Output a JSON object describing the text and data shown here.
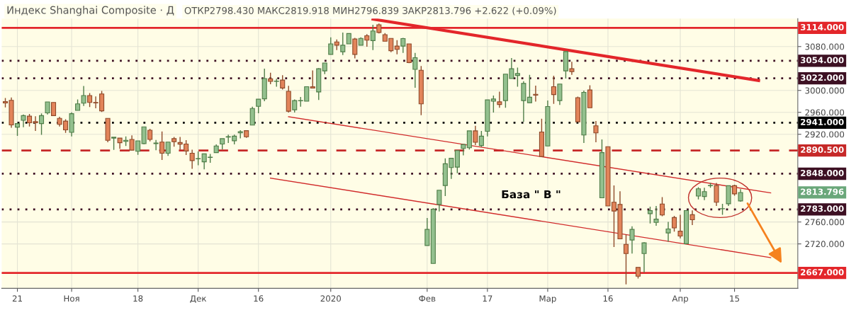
{
  "chart_data": {
    "type": "candlestick",
    "title": "Индекс Shanghai Composite · Д",
    "subtitle": "ОТКР2798.430 МАКС2819.918 МИН2796.839 ЗАКР2813.796 +2.622 (+0.09%)",
    "categories": [
      null,
      null,
      "21",
      null,
      null,
      null,
      null,
      null,
      null,
      null,
      null,
      "Ноя",
      null,
      null,
      null,
      null,
      null,
      null,
      null,
      null,
      null,
      null,
      "18",
      null,
      null,
      null,
      null,
      null,
      null,
      null,
      null,
      null,
      "Дек",
      null,
      null,
      null,
      null,
      null,
      null,
      null,
      null,
      null,
      "16",
      null,
      null,
      null,
      null,
      null,
      null,
      null,
      null,
      null,
      null,
      null,
      "2020",
      null,
      null,
      null,
      null,
      null,
      null,
      null,
      null,
      null,
      null,
      null,
      null,
      null,
      null,
      null,
      "Фев",
      null,
      null,
      null,
      null,
      null,
      null,
      null,
      null,
      null,
      "17",
      null,
      null,
      null,
      null,
      null,
      null,
      null,
      null,
      null,
      "Мар",
      null,
      null,
      null,
      null,
      null,
      null,
      null,
      null,
      null,
      "16",
      null,
      null,
      null,
      null,
      null,
      null,
      null,
      null,
      null,
      null,
      null,
      "Апр",
      null,
      null,
      null,
      null,
      null,
      null,
      null,
      null,
      "15",
      null,
      null,
      null,
      null,
      null,
      null,
      null,
      null,
      null,
      null
    ],
    "ohlc": [
      [
        2979.5,
        2986,
        2969,
        2977
      ],
      [
        2982,
        2987,
        2932,
        2937
      ],
      [
        2933,
        2939.5,
        2917,
        2939.5
      ],
      [
        2945.5,
        2956,
        2933,
        2954
      ],
      [
        2953,
        2957,
        2934,
        2941
      ],
      [
        2943,
        2953,
        2926,
        2941
      ],
      [
        2939.5,
        2958,
        2919,
        2954
      ],
      [
        2959,
        2979,
        2956,
        2979
      ],
      [
        2978,
        2978,
        2953.5,
        2954
      ],
      [
        2949,
        2952,
        2934,
        2938
      ],
      [
        2944,
        2947.5,
        2922.5,
        2928
      ],
      [
        2923.5,
        2960,
        2916,
        2957.5
      ],
      [
        2963.5,
        2983.5,
        2963.5,
        2975.5
      ],
      [
        2976.7,
        3008,
        2971.5,
        2990.7
      ],
      [
        2990.7,
        2995,
        2969.5,
        2978
      ],
      [
        2978,
        2989,
        2967.5,
        2977
      ],
      [
        2993.5,
        2999,
        2960.7,
        2962.7
      ],
      [
        2949,
        2949,
        2905.4,
        2909
      ],
      [
        2913,
        2914.6,
        2891.4,
        2914.6
      ],
      [
        2913,
        2913,
        2893.4,
        2904.6
      ],
      [
        2907,
        2916,
        2898.6,
        2909
      ],
      [
        2910.6,
        2918,
        2891,
        2891
      ],
      [
        2889,
        2908,
        2882.6,
        2908
      ],
      [
        2903,
        2933.5,
        2902,
        2933.5
      ],
      [
        2927.4,
        2930,
        2907,
        2910.6
      ],
      [
        2903,
        2909.5,
        2891,
        2904
      ],
      [
        2905.8,
        2925,
        2873,
        2885.4
      ],
      [
        2885.4,
        2905.8,
        2880.6,
        2905.8
      ],
      [
        2912,
        2915,
        2897.4,
        2906.6
      ],
      [
        2905,
        2915,
        2892,
        2902
      ],
      [
        2902.2,
        2909.4,
        2882.2,
        2889.4
      ],
      [
        2885.4,
        2891.8,
        2857,
        2872
      ],
      [
        2875,
        2888.6,
        2863.4,
        2875.8
      ],
      [
        2869.8,
        2884.2,
        2856,
        2884.2
      ],
      [
        2877.6,
        2884.2,
        2868,
        2878.2
      ],
      [
        2886.6,
        2901.4,
        2886.6,
        2898.6
      ],
      [
        2902.2,
        2912,
        2892.6,
        2912
      ],
      [
        2915,
        2919.4,
        2904.2,
        2915.6
      ],
      [
        2908.2,
        2919.4,
        2901.4,
        2916.6
      ],
      [
        2922.6,
        2927.4,
        2912.6,
        2924.6
      ],
      [
        2926.6,
        2927.4,
        2913.4,
        2915.4
      ],
      [
        2936.7,
        2970.3,
        2936.7,
        2967
      ],
      [
        2971,
        2984,
        2958.3,
        2984
      ],
      [
        2984.7,
        3039.6,
        2980.3,
        3021.6
      ],
      [
        3021.2,
        3032.4,
        3011.2,
        3016.4
      ],
      [
        3016.5,
        3021.2,
        3006.8,
        3017
      ],
      [
        3018.8,
        3027.6,
        3001.6,
        3004.4
      ],
      [
        2998.4,
        3008.4,
        2959.5,
        2962
      ],
      [
        2964.7,
        2983.5,
        2959.5,
        2981.5
      ],
      [
        2981,
        2988,
        2970.3,
        2981.5
      ],
      [
        2980.3,
        3006.8,
        2980.3,
        3006.8
      ],
      [
        3006.8,
        3036.4,
        3004.4,
        3004.4
      ],
      [
        2997.2,
        3040.8,
        2982.7,
        3039.6
      ],
      [
        3035.6,
        3050,
        3029.6,
        3050
      ],
      [
        3065.7,
        3096.9,
        3065.7,
        3084.9
      ],
      [
        3088.5,
        3092.9,
        3073.7,
        3082.5
      ],
      [
        3070.5,
        3105.7,
        3064.5,
        3082.5
      ],
      [
        3084.9,
        3103.7,
        3084.9,
        3103.7
      ],
      [
        3093.7,
        3095.7,
        3058.5,
        3065.7
      ],
      [
        3082.5,
        3096.9,
        3082.5,
        3094.9
      ],
      [
        3099.7,
        3102.5,
        3079.7,
        3091.7
      ],
      [
        3090.9,
        3119.8,
        3073.7,
        3108.5
      ],
      [
        3119.8,
        3122,
        3104,
        3105.7
      ],
      [
        3101.7,
        3104.5,
        3089.7,
        3089.7
      ],
      [
        3094.9,
        3094.9,
        3069.7,
        3072.5
      ],
      [
        3080.9,
        3091.7,
        3065.7,
        3074.9
      ],
      [
        3080.9,
        3095.7,
        3068.5,
        3094.5
      ],
      [
        3084.9,
        3084.9,
        3049.6,
        3050.8
      ],
      [
        3038.4,
        3068.5,
        3004.8,
        3059.7
      ],
      [
        3036.8,
        3044.4,
        2954.7,
        2975.5
      ],
      [
        2717.1,
        2767.2,
        2717.1,
        2746.4
      ],
      [
        2684.3,
        2785.2,
        2684.3,
        2783.2
      ],
      [
        2792,
        2818,
        2779.2,
        2818
      ],
      [
        2826.5,
        2876.2,
        2807.3,
        2866.2
      ],
      [
        2859.3,
        2876.2,
        2838.5,
        2876.2
      ],
      [
        2860.1,
        2890.2,
        2848.9,
        2890.2
      ],
      [
        2894.2,
        2901.4,
        2881.4,
        2901.4
      ],
      [
        2895.4,
        2926.2,
        2892.2,
        2926.2
      ],
      [
        2926.2,
        2935.5,
        2900.2,
        2905.4
      ],
      [
        2899.4,
        2926.2,
        2896.6,
        2916.6
      ],
      [
        2925.4,
        2982.7,
        2916.2,
        2982.7
      ],
      [
        2980.3,
        2990.7,
        2959.5,
        2984.3
      ],
      [
        2979.1,
        2997.6,
        2968.3,
        2974.3
      ],
      [
        2981.5,
        3029.6,
        2968.3,
        3029.6
      ],
      [
        3021.6,
        3058.9,
        3021.6,
        3039.6
      ],
      [
        3027.2,
        3041.6,
        3006.8,
        3030.8
      ],
      [
        2981.5,
        3016.8,
        2942.7,
        3012.8
      ],
      [
        2977.5,
        3028.4,
        2977.5,
        2987.5
      ],
      [
        2992.8,
        3008.8,
        2979.5,
        2991.2
      ],
      [
        2924.2,
        2948.3,
        2879.4,
        2879.4
      ],
      [
        2898.6,
        2981.5,
        2898.6,
        2970.7
      ],
      [
        3006.8,
        3026.8,
        2975.5,
        2992.4
      ],
      [
        2981.5,
        3011.6,
        2973.5,
        3011.6
      ],
      [
        3035.6,
        3070.9,
        3021.6,
        3070.9
      ],
      [
        3039.6,
        3052.4,
        3028.4,
        3034.4
      ],
      [
        2986.7,
        2988.7,
        2942.7,
        2942.7
      ],
      [
        2918.6,
        2999.6,
        2904.2,
        2996.4
      ],
      [
        3000.8,
        3009.2,
        2968.3,
        2968.3
      ],
      [
        2935.5,
        2944.3,
        2905.4,
        2922.6
      ],
      [
        2804,
        2910.6,
        2804,
        2886.6
      ],
      [
        2897.4,
        2897.4,
        2789.2,
        2789.2
      ],
      [
        2796,
        2826.5,
        2714.3,
        2780
      ],
      [
        2792,
        2816,
        2729.1,
        2729.1
      ],
      [
        2719.1,
        2737.1,
        2646.2,
        2702.3
      ],
      [
        2727.1,
        2752,
        2702.3,
        2746.4
      ],
      [
        2677.1,
        2677.1,
        2657,
        2661
      ],
      [
        2702.3,
        2723.1,
        2667.8,
        2721.9
      ],
      [
        2775.2,
        2788,
        2757.2,
        2780.8
      ],
      [
        2759.2,
        2789.2,
        2753.2,
        2765.2
      ],
      [
        2792.8,
        2805.2,
        2770.4,
        2772.8
      ],
      [
        2740,
        2760,
        2723.9,
        2747.2
      ],
      [
        2768,
        2771.2,
        2742.4,
        2749.2
      ],
      [
        2743.2,
        2773.2,
        2730.3,
        2734.3
      ],
      [
        2720.3,
        2780.8,
        2720.3,
        2780.8
      ],
      [
        2773.2,
        2781.2,
        2754.4,
        2764
      ],
      [
        2807.3,
        2823.3,
        2801.2,
        2820.5
      ],
      [
        2806.5,
        2822.5,
        2800,
        2815.3
      ],
      [
        2826,
        2831.3,
        2822.5,
        2826.5
      ],
      [
        2826.5,
        2831.3,
        2789.2,
        2796
      ],
      [
        2784,
        2793.2,
        2773.2,
        2784.4
      ],
      [
        2793.2,
        2826.1,
        2789.2,
        2826.1
      ],
      [
        2826.1,
        2828.1,
        2808,
        2811.3
      ],
      [
        2798.43,
        2819.918,
        2796.839,
        2813.796
      ],
      null,
      null,
      null,
      null,
      null,
      null,
      null,
      null,
      null
    ],
    "series": [
      {
        "type": "line",
        "color": "#e3262a",
        "values": [
          null,
          null,
          null,
          null,
          null,
          null,
          null,
          null,
          null,
          null,
          null,
          null,
          null,
          null,
          null,
          null,
          null,
          null,
          null,
          null,
          null,
          null,
          null,
          null,
          null,
          null,
          null,
          null,
          null,
          null,
          null,
          null,
          null,
          null,
          null,
          null,
          null,
          null,
          null,
          null,
          null,
          null,
          null,
          null,
          null,
          null,
          null,
          null,
          null,
          null,
          null,
          null,
          null,
          null,
          null,
          null,
          null,
          null,
          null,
          null,
          null,
          3130,
          null,
          null,
          null,
          null,
          null,
          null,
          null,
          null,
          null,
          null,
          null,
          null,
          null,
          null,
          null,
          null,
          null,
          null,
          null,
          null,
          null,
          null,
          null,
          null,
          null,
          null,
          null,
          null,
          null,
          null,
          null,
          null,
          null,
          null,
          null,
          null,
          null,
          null,
          null,
          null,
          null,
          null,
          null,
          null,
          null,
          null,
          null,
          null,
          null,
          null,
          null,
          null,
          null,
          null,
          null,
          null,
          null,
          null,
          null,
          null,
          null,
          null,
          null,
          3018,
          null,
          null,
          null,
          null,
          null,
          null
        ]
      },
      {
        "type": "line",
        "color": "#d12b2b",
        "values": [
          null,
          null,
          null,
          null,
          null,
          null,
          null,
          null,
          null,
          null,
          null,
          null,
          null,
          null,
          null,
          null,
          null,
          null,
          null,
          null,
          null,
          null,
          null,
          null,
          null,
          null,
          null,
          null,
          null,
          null,
          null,
          null,
          null,
          null,
          null,
          null,
          null,
          null,
          null,
          null,
          null,
          null,
          null,
          null,
          null,
          null,
          null,
          2952,
          null,
          null,
          null,
          null,
          null,
          null,
          null,
          null,
          null,
          null,
          null,
          null,
          null,
          null,
          null,
          null,
          null,
          null,
          null,
          null,
          null,
          null,
          null,
          null,
          null,
          null,
          null,
          null,
          null,
          null,
          null,
          null,
          null,
          null,
          null,
          null,
          null,
          null,
          null,
          null,
          null,
          null,
          null,
          null,
          null,
          null,
          null,
          null,
          null,
          null,
          null,
          null,
          null,
          null,
          null,
          null,
          null,
          null,
          null,
          null,
          null,
          null,
          null,
          null,
          null,
          null,
          null,
          null,
          null,
          null,
          null,
          null,
          null,
          null,
          null,
          null,
          null,
          null,
          null,
          2813,
          null,
          null,
          null,
          null
        ]
      },
      {
        "type": "line",
        "color": "#d12b2b",
        "values": [
          null,
          null,
          null,
          null,
          null,
          null,
          null,
          null,
          null,
          null,
          null,
          null,
          null,
          null,
          null,
          null,
          null,
          null,
          null,
          null,
          null,
          null,
          null,
          null,
          null,
          null,
          null,
          null,
          null,
          null,
          null,
          null,
          null,
          null,
          null,
          null,
          null,
          null,
          null,
          null,
          null,
          null,
          null,
          null,
          2840,
          null,
          null,
          null,
          null,
          null,
          null,
          null,
          null,
          null,
          null,
          null,
          null,
          null,
          null,
          null,
          null,
          null,
          null,
          null,
          null,
          null,
          null,
          null,
          null,
          null,
          null,
          null,
          null,
          null,
          null,
          null,
          null,
          null,
          null,
          null,
          null,
          null,
          null,
          null,
          null,
          null,
          null,
          null,
          null,
          null,
          null,
          null,
          null,
          null,
          null,
          null,
          null,
          null,
          null,
          null,
          null,
          null,
          null,
          null,
          null,
          null,
          null,
          null,
          null,
          null,
          null,
          null,
          null,
          null,
          null,
          null,
          null,
          null,
          null,
          null,
          null,
          null,
          null,
          null,
          null,
          null,
          null,
          2695,
          null,
          null,
          null,
          null
        ]
      }
    ],
    "ylim": [
      2639,
      3131
    ],
    "yticks": [
      {
        "value": 2720,
        "label": "2720.000"
      },
      {
        "value": 2760,
        "label": "2760.000"
      },
      {
        "value": 2920,
        "label": "2920.000"
      },
      {
        "value": 2960,
        "label": "2960.000"
      },
      {
        "value": 3000,
        "label": "3000.000"
      },
      {
        "value": 3080,
        "label": "3080.000"
      }
    ],
    "ref_lines": [
      {
        "axis": "y",
        "value": 3114,
        "label": "3114.000",
        "color": "#e3262a",
        "line_style": "solid"
      },
      {
        "axis": "y",
        "value": 3054,
        "label": "3054.000",
        "color": "#3d1023",
        "line_style": "dotted"
      },
      {
        "axis": "y",
        "value": 3022,
        "label": "3022.000",
        "color": "#3d1023",
        "line_style": "dotted"
      },
      {
        "axis": "y",
        "value": 2941,
        "label": "2941.000",
        "color": "#000000",
        "line_style": "dotted"
      },
      {
        "axis": "y",
        "value": 2890.5,
        "label": "2890.500",
        "color": "#c62828",
        "line_style": "dashed"
      },
      {
        "axis": "y",
        "value": 2848,
        "label": "2848.000",
        "color": "#3d1023",
        "line_style": "dotted"
      },
      {
        "axis": "y",
        "value": 2783,
        "label": "2783.000",
        "color": "#3d1023",
        "line_style": "dotted"
      },
      {
        "axis": "y",
        "value": 2667,
        "label": "2667.000",
        "color": "#e3262a",
        "line_style": "solid"
      }
    ],
    "annotations": [
      "База \" В \"",
      "2813.796"
    ],
    "grid": true
  }
}
